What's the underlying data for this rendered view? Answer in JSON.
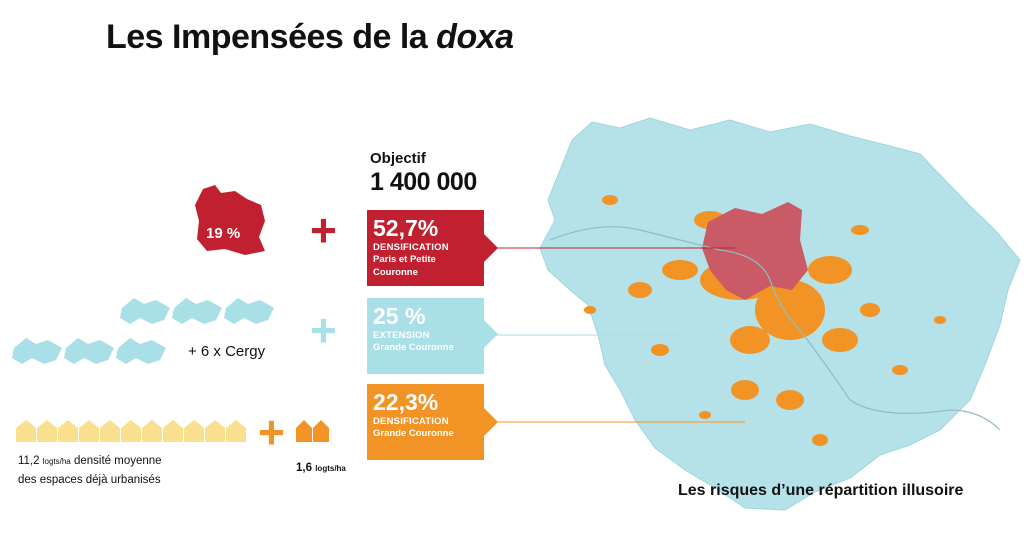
{
  "title": {
    "prefix": "Les Impensées de la ",
    "italic": "doxa"
  },
  "objective": {
    "label": "Objectif",
    "value": "1 400 000"
  },
  "boxes": [
    {
      "pct": "52,7%",
      "kind": "DENSIFICATION",
      "sub1": "Paris et Petite",
      "sub2": "Couronne",
      "color": "#c0202f"
    },
    {
      "pct": "25 %",
      "kind": "EXTENSION",
      "sub1": "Grande Couronne",
      "sub2": "",
      "color": "#a9dfe6"
    },
    {
      "pct": "22,3%",
      "kind": "DENSIFICATION",
      "sub1": "Grande Couronne",
      "sub2": "",
      "color": "#f29326"
    }
  ],
  "left": {
    "paris_pct": "19 %",
    "cergy": "+ 6 x Cergy",
    "density_value": "11,2",
    "density_unit": "logts/ha",
    "density_desc": "densité moyenne",
    "density_desc2": "des espaces déjà urbanisés",
    "density_small_value": "1,6",
    "density_small_unit": "logts/ha",
    "plus": "+"
  },
  "caption": "Les risques d’une répartition illusoire",
  "colors": {
    "red": "#c0202f",
    "blue": "#a9dfe6",
    "orange": "#f29326",
    "yellow": "#f9e08e"
  }
}
